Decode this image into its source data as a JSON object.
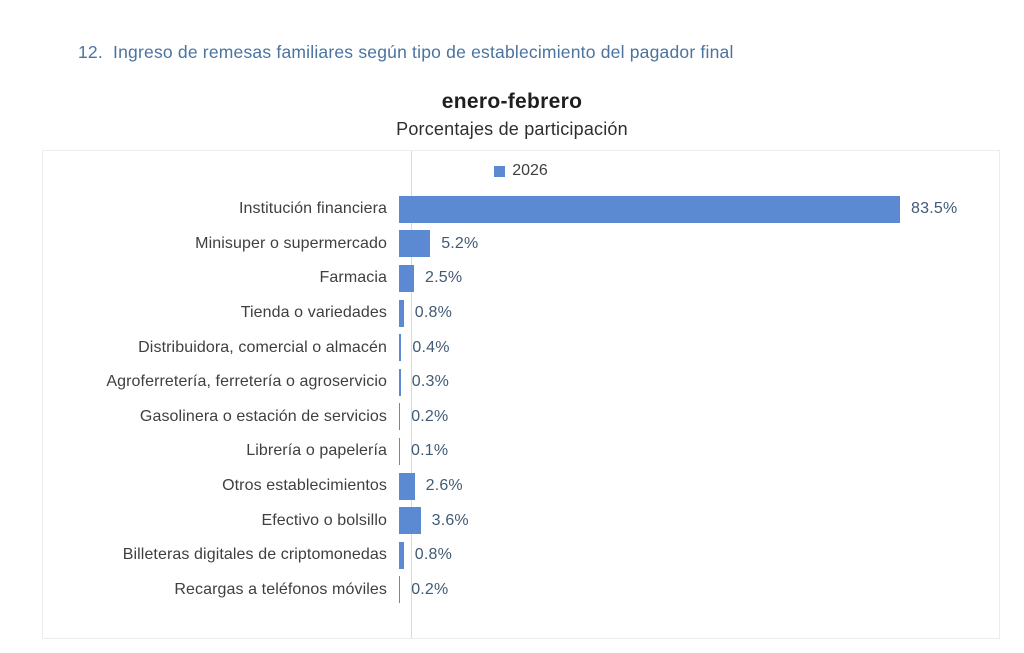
{
  "page": {
    "title": "12.  Ingreso de remesas familiares según tipo de establecimiento del pagador final",
    "title_color": "#4a73a0"
  },
  "chart": {
    "title": "enero-febrero",
    "subtitle": "Porcentajes de participación",
    "legend_label": "2026"
  },
  "chart_data": {
    "type": "bar",
    "orientation": "horizontal",
    "title": "enero-febrero",
    "subtitle": "Porcentajes de participación",
    "legend": [
      "2026"
    ],
    "legend_position": "top-center",
    "unit": "%",
    "categories": [
      "Institución financiera",
      "Minisuper o supermercado",
      "Farmacia",
      "Tienda o variedades",
      "Distribuidora, comercial o almacén",
      "Agroferretería, ferretería o agroservicio",
      "Gasolinera o estación de servicios",
      "Librería o papelería",
      "Otros establecimientos",
      "Efectivo o bolsillo",
      "Billeteras digitales de criptomonedas",
      "Recargas a teléfonos móviles"
    ],
    "values": [
      83.5,
      5.2,
      2.5,
      0.8,
      0.4,
      0.3,
      0.2,
      0.1,
      2.6,
      3.6,
      0.8,
      0.2
    ],
    "value_labels": [
      "83.5%",
      "5.2%",
      "2.5%",
      "0.8%",
      "0.4%",
      "0.3%",
      "0.2%",
      "0.1%",
      "2.6%",
      "3.6%",
      "0.8%",
      "0.2%"
    ],
    "xlim": [
      0,
      100
    ],
    "grid": false,
    "bar_color": "#5b8ad2",
    "value_label_color": "#415a75"
  }
}
